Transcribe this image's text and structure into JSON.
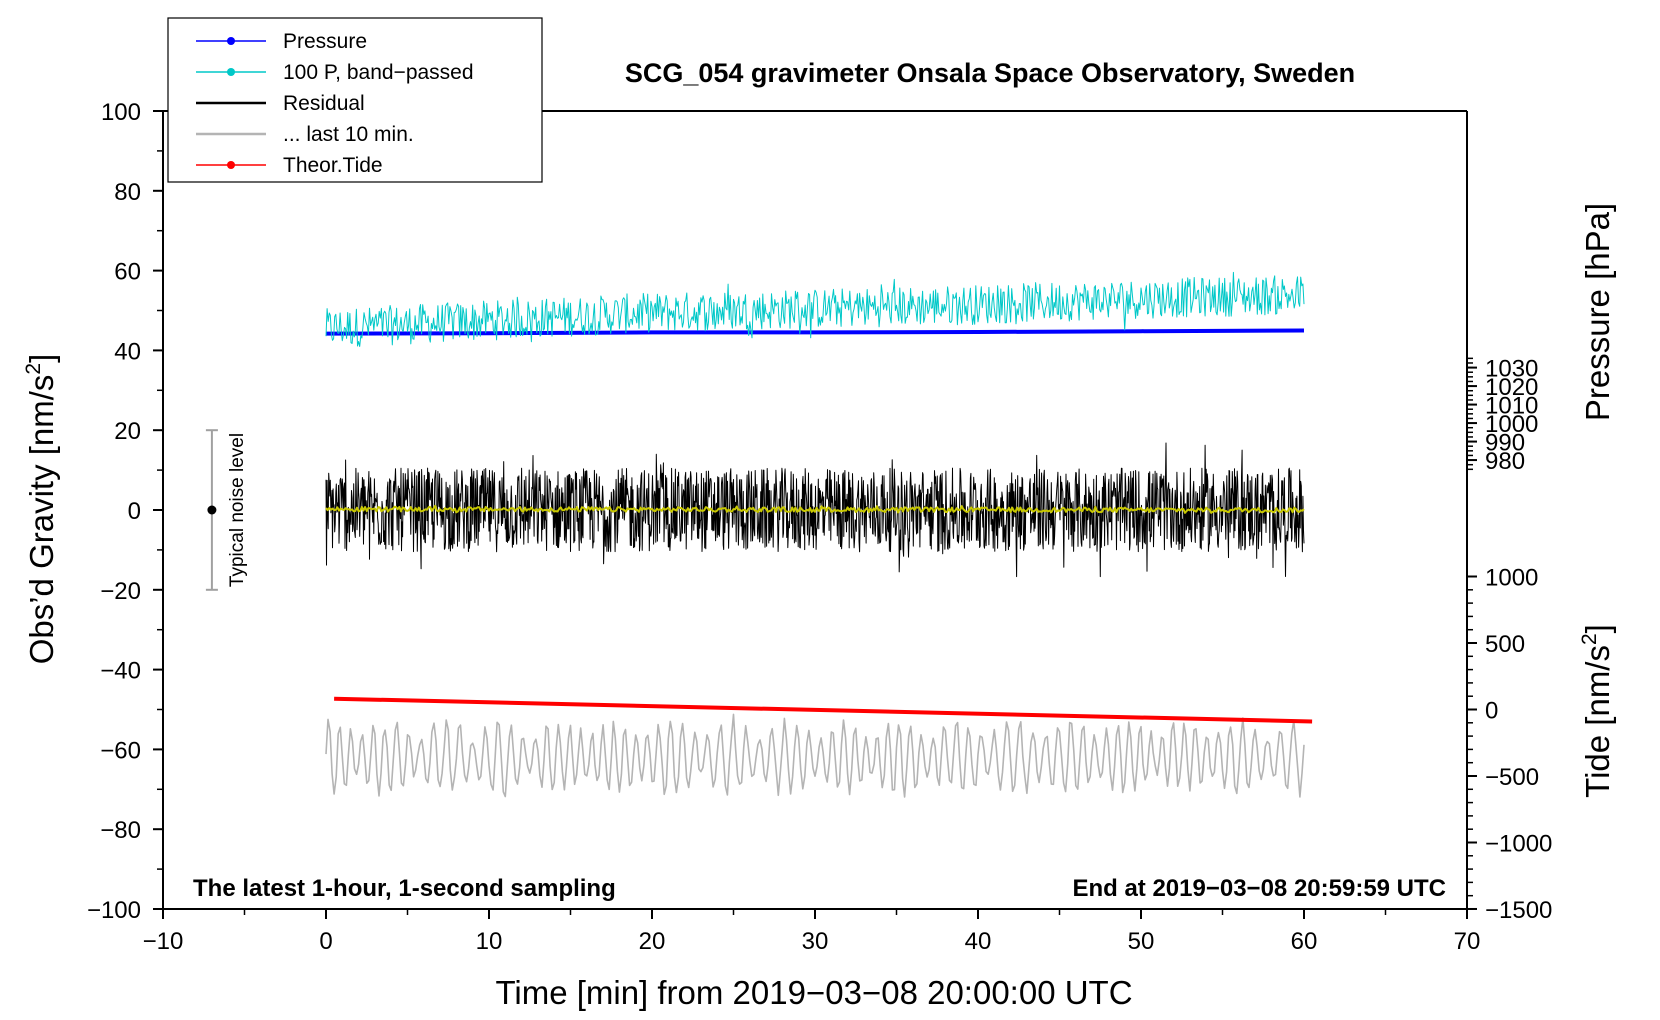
{
  "chart_data": {
    "type": "line",
    "title": "SCG_054 gravimeter Onsala Space Observatory, Sweden",
    "xlabel": "Time [min] from 2019−03−08 20:00:00 UTC",
    "ylabel_left": "Obs’d Gravity [nm/s",
    "ylabel_left_sup": "2",
    "ylabel_left_end": "]",
    "ylabel_right_top": "Pressure [hPa]",
    "ylabel_right_bottom": "Tide [nm/s",
    "ylabel_right_bottom_sup": "2",
    "ylabel_right_bottom_end": "]",
    "xlim": [
      -10,
      70
    ],
    "ylim": [
      -100,
      100
    ],
    "x_ticks": [
      -10,
      0,
      10,
      20,
      30,
      40,
      50,
      60,
      70
    ],
    "x_tick_labels": [
      "−10",
      "0",
      "10",
      "20",
      "30",
      "40",
      "50",
      "60",
      "70"
    ],
    "y_ticks": [
      100,
      80,
      60,
      40,
      20,
      0,
      -20,
      -40,
      -60,
      -80,
      -100
    ],
    "y_tick_labels": [
      "100",
      "80",
      "60",
      "40",
      "20",
      "0",
      "−20",
      "−40",
      "−60",
      "−80",
      "−100"
    ],
    "pressure_axis": {
      "ticks": [
        1030,
        1020,
        1010,
        1000,
        990,
        980
      ],
      "labels": [
        "1030",
        "1020",
        "1010",
        "1000",
        "990",
        "980"
      ],
      "hpa_at_gravity_0": 953.0,
      "gravity_per_hpa": 0.4635
    },
    "tide_axis": {
      "ticks": [
        1000,
        500,
        0,
        -500,
        -1000,
        -1500
      ],
      "labels": [
        "1000",
        "500",
        "0",
        "−500",
        "−1000",
        "−1500"
      ],
      "gravity_at_tide_0": -50.0,
      "gravity_per_tide": 0.03333
    },
    "annotations": {
      "bottom_left": "The latest 1-hour, 1-second sampling",
      "bottom_right": "End at 2019−03−08 20:59:59 UTC",
      "noise_label": "Typical noise level",
      "noise_x": -7,
      "noise_range": [
        -20,
        20
      ],
      "noise_center": 0
    },
    "legend": {
      "position": "top-left",
      "entries": [
        {
          "label": "Pressure",
          "color": "#0000ff",
          "marker": true
        },
        {
          "label": "100 P, band−passed",
          "color": "#00c8c8",
          "marker": true
        },
        {
          "label": "Residual",
          "color": "#000000",
          "marker": false
        },
        {
          "label": "... last 10 min.",
          "color": "#b4b4b4",
          "marker": false
        },
        {
          "label": "Theor.Tide",
          "color": "#ff0000",
          "marker": true
        }
      ]
    },
    "series": [
      {
        "name": "Pressure",
        "color": "#0000ff",
        "kind": "line",
        "x": [
          0,
          10,
          20,
          30,
          40,
          50,
          60
        ],
        "y": [
          44.2,
          44.3,
          44.5,
          44.5,
          44.6,
          44.8,
          45.0
        ]
      },
      {
        "name": "100 P, band-passed",
        "color": "#00c8c8",
        "kind": "noise",
        "x": [
          0,
          10,
          20,
          30,
          40,
          50,
          60
        ],
        "y": [
          45.5,
          47.5,
          49.5,
          50.5,
          51.5,
          53.0,
          54.0
        ],
        "amplitude": 5.0
      },
      {
        "name": "Residual",
        "color": "#000000",
        "kind": "noise",
        "x": [
          0,
          60
        ],
        "y": [
          0,
          0
        ],
        "amplitude": 10.5
      },
      {
        "name": "Residual smoothed",
        "color": "#c8c800",
        "kind": "noise",
        "x": [
          0,
          60
        ],
        "y": [
          0.2,
          0.0
        ],
        "amplitude": 0.6
      },
      {
        "name": "... last 10 min.",
        "color": "#b4b4b4",
        "kind": "noise",
        "x": [
          0,
          60
        ],
        "y": [
          -62,
          -62
        ],
        "amplitude": 10.0
      },
      {
        "name": "Theor.Tide",
        "color": "#ff0000",
        "kind": "line",
        "x": [
          0.5,
          60.5
        ],
        "y": [
          -47.3,
          -53.0
        ]
      }
    ]
  }
}
